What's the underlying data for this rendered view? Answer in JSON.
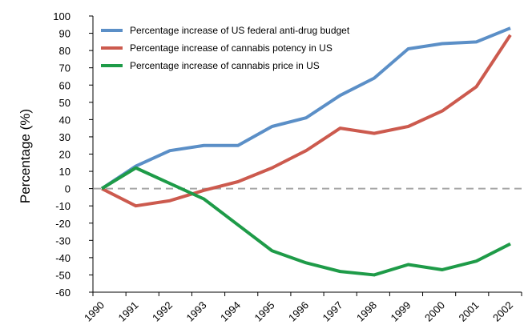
{
  "chart_data": {
    "type": "line",
    "title": "",
    "xlabel": "",
    "ylabel": "Percentage (%)",
    "x": [
      "1990",
      "1991",
      "1992",
      "1993",
      "1994",
      "1995",
      "1996",
      "1997",
      "1998",
      "1999",
      "2000",
      "2001",
      "2002"
    ],
    "ylim": [
      -60,
      100
    ],
    "yticks": [
      "100",
      "90",
      "80",
      "70",
      "60",
      "50",
      "40",
      "30",
      "20",
      "10",
      "0",
      "-10",
      "-20",
      "-30",
      "-40",
      "-50",
      "-60"
    ],
    "grid": false,
    "legend_position": "top-left",
    "reference_line": {
      "y": 0,
      "style": "dashed",
      "color": "#a6a6a6"
    },
    "series": [
      {
        "name": "Percentage increase of US federal anti-drug budget",
        "color": "#5b8fc7",
        "values": [
          0,
          13,
          22,
          25,
          25,
          36,
          41,
          54,
          64,
          81,
          84,
          85,
          93
        ]
      },
      {
        "name": "Percentage increase of cannabis potency in US",
        "color": "#cc5a4e",
        "values": [
          0,
          -10,
          -7,
          -1,
          4,
          12,
          22,
          35,
          32,
          36,
          45,
          59,
          89
        ]
      },
      {
        "name": "Percentage increase of cannabis price in US",
        "color": "#1e9b48",
        "values": [
          0,
          12,
          3,
          -6,
          -21,
          -36,
          -43,
          -48,
          -50,
          -44,
          -47,
          -42,
          -32
        ]
      }
    ]
  }
}
